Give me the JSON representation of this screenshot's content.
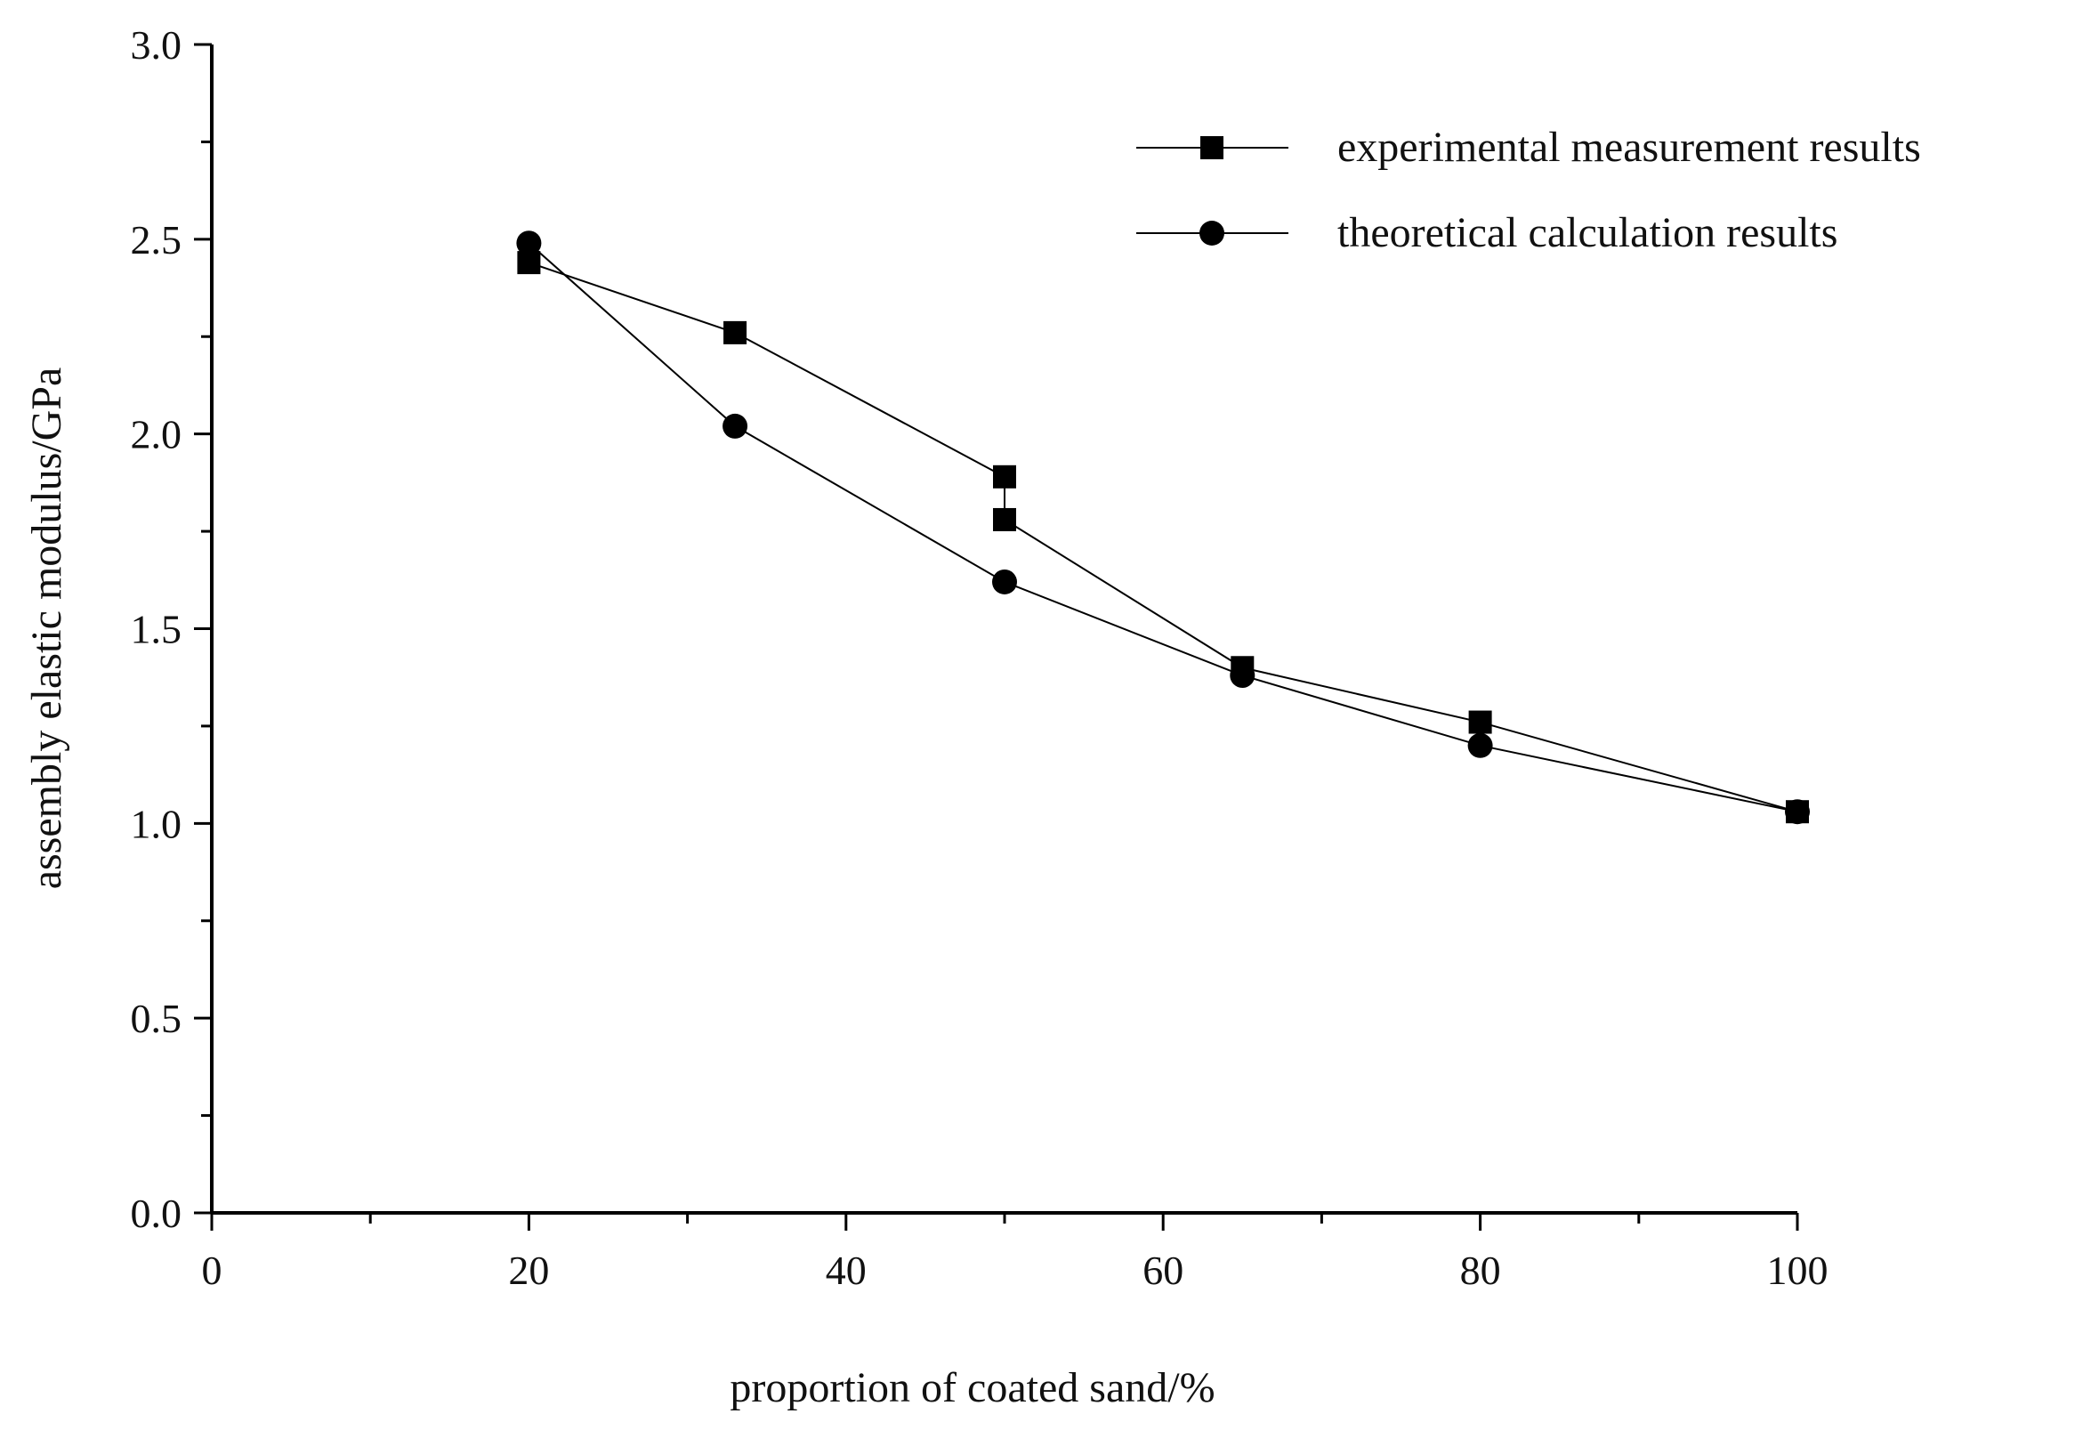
{
  "chart_data": {
    "type": "line",
    "title": "",
    "xlabel": "proportion of coated sand/%",
    "ylabel": "assembly elastic modulus/GPa",
    "xlim": [
      0,
      100
    ],
    "ylim": [
      0.0,
      3.0
    ],
    "x_ticks": [
      0,
      20,
      40,
      60,
      80,
      100
    ],
    "x_tick_labels": [
      "0",
      "20",
      "40",
      "60",
      "80",
      "100"
    ],
    "y_ticks": [
      0.0,
      0.5,
      1.0,
      1.5,
      2.0,
      2.5,
      3.0
    ],
    "y_tick_labels": [
      "0.0",
      "0.5",
      "1.0",
      "1.5",
      "2.0",
      "2.5",
      "3.0"
    ],
    "grid": false,
    "legend_position": "top-right",
    "series": [
      {
        "name": "experimental measurement results",
        "marker": "square",
        "color": "#000000",
        "points": [
          {
            "x": 20,
            "y": 2.44
          },
          {
            "x": 33,
            "y": 2.26
          },
          {
            "x": 50,
            "y": 1.89
          },
          {
            "x": 50,
            "y": 1.78
          },
          {
            "x": 65,
            "y": 1.4
          },
          {
            "x": 80,
            "y": 1.26
          },
          {
            "x": 100,
            "y": 1.03
          }
        ]
      },
      {
        "name": "theoretical calculation results",
        "marker": "circle",
        "color": "#000000",
        "points": [
          {
            "x": 20,
            "y": 2.49
          },
          {
            "x": 33,
            "y": 2.02
          },
          {
            "x": 50,
            "y": 1.62
          },
          {
            "x": 65,
            "y": 1.38
          },
          {
            "x": 80,
            "y": 1.2
          },
          {
            "x": 100,
            "y": 1.03
          }
        ]
      }
    ]
  }
}
